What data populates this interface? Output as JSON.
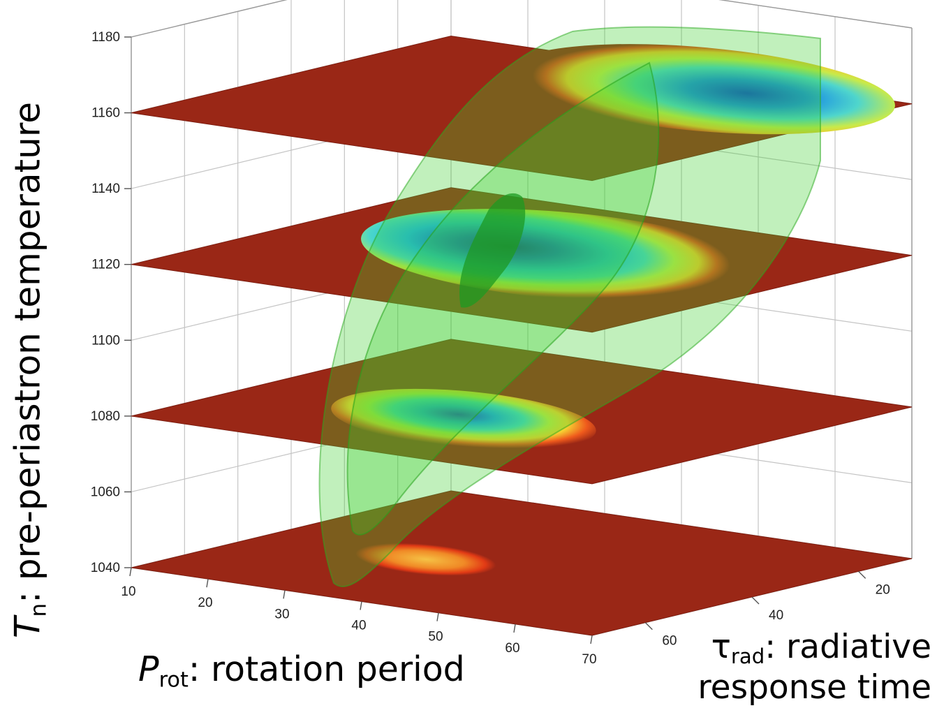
{
  "chart_data": {
    "type": "surface3d",
    "axes": {
      "x": {
        "title_symbol": "P",
        "title_subscript": "rot",
        "title_text": ": rotation period",
        "ticks": [
          10,
          20,
          30,
          40,
          50,
          60,
          70
        ]
      },
      "y": {
        "title_symbol": "τ",
        "title_subscript": "rad",
        "title_text_line1": ": radiative",
        "title_text_line2": "response time",
        "ticks": [
          20,
          40,
          60
        ]
      },
      "z": {
        "title_symbol": "T",
        "title_subscript": "n",
        "title_text": ": pre-periastron temperature",
        "ticks": [
          1040,
          1060,
          1080,
          1100,
          1120,
          1140,
          1160,
          1180
        ],
        "range": [
          1040,
          1180
        ]
      }
    },
    "slices": [
      {
        "z": 1040,
        "blob": {
          "x": 31,
          "y": 45,
          "size": 0.18,
          "min_color": "#f7a32b"
        }
      },
      {
        "z": 1080,
        "blob": {
          "x": 38,
          "y": 48,
          "size": 0.34,
          "min_color": "#2d5fe0"
        }
      },
      {
        "z": 1120,
        "blob": {
          "x": 42,
          "y": 35,
          "size": 0.52,
          "min_color": "#0a3ec9"
        }
      },
      {
        "z": 1160,
        "blob": {
          "x": 48,
          "y": 18,
          "size": 0.5,
          "min_color": "#1560d8"
        }
      }
    ],
    "colors": {
      "plane": "#9a2716",
      "iso_surface": "#3fd12e",
      "grid": "#c4c4c4"
    },
    "grid": true
  }
}
